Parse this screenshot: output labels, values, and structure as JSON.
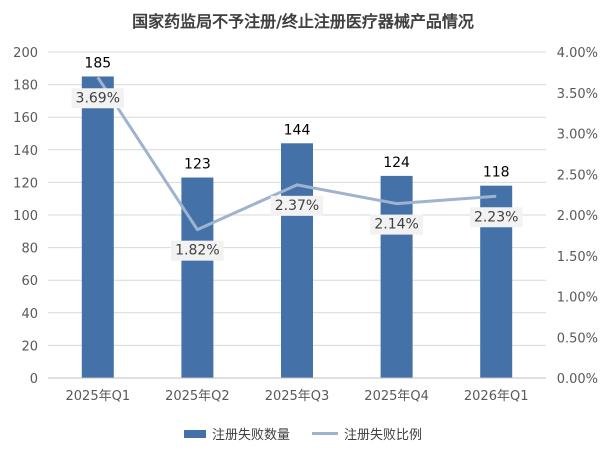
{
  "chart_data": {
    "type": "bar",
    "title": "国家药监局不予注册/终止注册医疗器械产品情况",
    "categories": [
      "2025年Q1",
      "2025年Q2",
      "2025年Q3",
      "2025年Q4",
      "2026年Q1"
    ],
    "series": [
      {
        "name": "注册失败数量",
        "type": "bar",
        "axis": "left",
        "values": [
          185,
          123,
          144,
          124,
          118
        ],
        "labels": [
          "185",
          "123",
          "144",
          "124",
          "118"
        ],
        "color": "#4472a8"
      },
      {
        "name": "注册失败比例",
        "type": "line",
        "axis": "right",
        "values": [
          3.69,
          1.82,
          2.37,
          2.14,
          2.23
        ],
        "labels": [
          "3.69%",
          "1.82%",
          "2.37%",
          "2.14%",
          "2.23%"
        ],
        "color": "#9fb3cf"
      }
    ],
    "y_left": {
      "range": [
        0,
        200
      ],
      "ticks": [
        0,
        20,
        40,
        60,
        80,
        100,
        120,
        140,
        160,
        180,
        200
      ],
      "tick_labels": [
        "0",
        "20",
        "40",
        "60",
        "80",
        "100",
        "120",
        "140",
        "160",
        "180",
        "200"
      ]
    },
    "y_right": {
      "range": [
        0,
        4
      ],
      "ticks": [
        0,
        0.5,
        1,
        1.5,
        2,
        2.5,
        3,
        3.5,
        4
      ],
      "tick_labels": [
        "0.00%",
        "0.50%",
        "1.00%",
        "1.50%",
        "2.00%",
        "2.50%",
        "3.00%",
        "3.50%",
        "4.00%"
      ]
    },
    "grid": true,
    "legend_position": "bottom"
  }
}
